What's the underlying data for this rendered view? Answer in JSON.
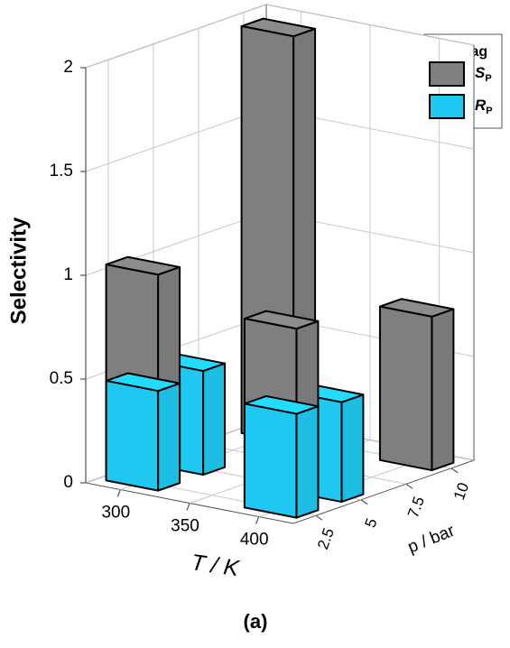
{
  "chart_data": {
    "type": "bar3d",
    "caption": "(a)",
    "ylabel": "Selectivity",
    "xlabel": "T / K",
    "zlabel": "p / bar",
    "legend_title": "zig-zag",
    "legend": "upper right",
    "xlim": [
      275,
      425
    ],
    "xticks": [
      300,
      350,
      400
    ],
    "zlim": [
      1.25,
      11.25
    ],
    "zticks": [
      2.5,
      5,
      7.5,
      10
    ],
    "ylim": [
      0,
      2
    ],
    "yticks": [
      0,
      0.5,
      1,
      1.5,
      2
    ],
    "grid": true,
    "series": [
      {
        "name": "SP",
        "color": "#7f7f7f",
        "x": [
          300,
          300,
          400,
          400
        ],
        "z": [
          2.5,
          10,
          2.5,
          10
        ],
        "values": [
          1.04,
          1.96,
          0.91,
          0.74
        ]
      },
      {
        "name": "RP",
        "color": "#1ec8f0",
        "x": [
          300,
          300,
          400,
          400
        ],
        "z": [
          2.5,
          5,
          2.5,
          5
        ],
        "values": [
          0.48,
          0.5,
          0.5,
          0.48
        ]
      }
    ]
  }
}
